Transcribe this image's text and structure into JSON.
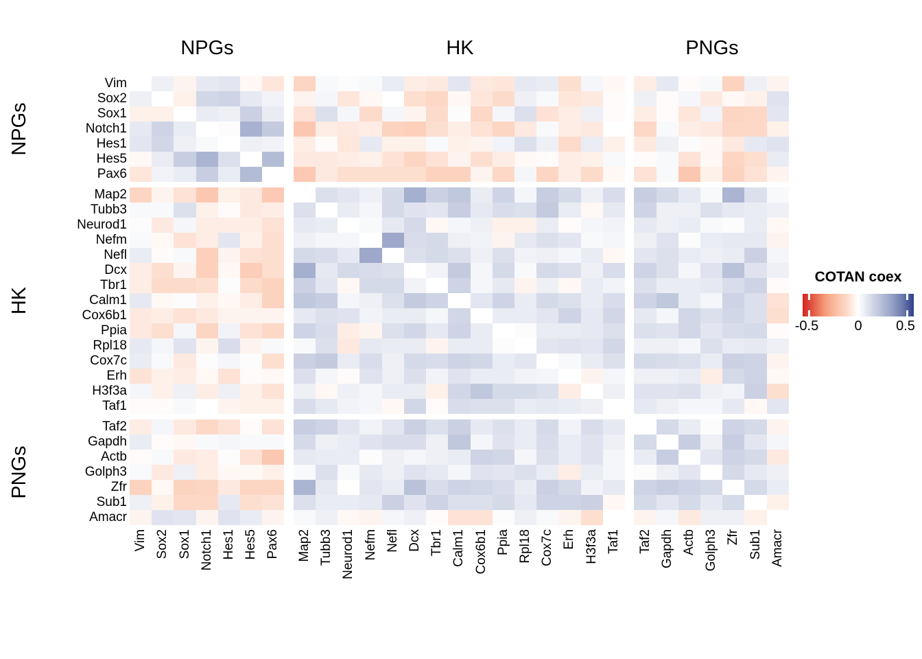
{
  "chart_data": {
    "type": "heatmap",
    "legend": {
      "title": "COTAN coex",
      "ticks": [
        "-0.5",
        "0",
        "0.5"
      ],
      "min": -0.5,
      "max": 0.5
    },
    "groups": [
      {
        "label": "NPGs",
        "genes": [
          "Vim",
          "Sox2",
          "Sox1",
          "Notch1",
          "Hes1",
          "Hes5",
          "Pax6"
        ]
      },
      {
        "label": "HK",
        "genes": [
          "Map2",
          "Tubb3",
          "Neurod1",
          "Nefm",
          "Nefl",
          "Dcx",
          "Tbr1",
          "Calm1",
          "Cox6b1",
          "Ppia",
          "Rpl18",
          "Cox7c",
          "Erh",
          "H3f3a",
          "Taf1"
        ]
      },
      {
        "label": "PNGs",
        "genes": [
          "Taf2",
          "Gapdh",
          "Actb",
          "Golph3",
          "Zfr",
          "Sub1",
          "Amacr"
        ]
      }
    ],
    "color_scale": {
      "max": 0.5,
      "negative_stops": [
        "#FFFFFF",
        "#FDDBCB",
        "#FBBFA4",
        "#F49B78",
        "#E35F4A",
        "#D32222"
      ],
      "positive_stops": [
        "#FFFFFF",
        "#DCE0ED",
        "#B9C2D9",
        "#97A2C7",
        "#6C7BAC",
        "#2F3E8D"
      ]
    },
    "matrix": [
      [
        0,
        0.05,
        -0.03,
        0.07,
        0.08,
        -0.02,
        -0.07,
        -0.12,
        0.02,
        0.01,
        0.02,
        0.06,
        -0.05,
        -0.06,
        0.08,
        -0.06,
        -0.07,
        0.07,
        0.06,
        -0.09,
        0.03,
        -0.02,
        -0.05,
        0.07,
        -0.01,
        0.02,
        -0.13,
        0.05,
        -0.03
      ],
      [
        0.05,
        0,
        -0.04,
        0.13,
        0.14,
        0.07,
        0.04,
        -0.03,
        0.03,
        -0.07,
        -0.02,
        0,
        -0.09,
        -0.11,
        -0.02,
        -0.07,
        -0.1,
        0.05,
        0.02,
        -0.07,
        -0.06,
        -0.01,
        0.05,
        -0.01,
        0.03,
        -0.06,
        -0.02,
        -0.04,
        0.09
      ],
      [
        -0.04,
        -0.04,
        0,
        0.06,
        0.05,
        0.15,
        0.06,
        -0.08,
        0.1,
        0.03,
        -0.1,
        0.03,
        -0.03,
        -0.1,
        0.01,
        -0.11,
        0.03,
        0.1,
        -0.08,
        -0.05,
        0.05,
        -0.01,
        -0.05,
        -0.01,
        -0.07,
        0.04,
        -0.12,
        -0.11,
        0.08
      ],
      [
        0.07,
        0.14,
        0.06,
        0,
        0.01,
        0.25,
        0.17,
        -0.17,
        -0.05,
        -0.06,
        -0.05,
        -0.13,
        -0.14,
        -0.09,
        -0.05,
        -0.08,
        -0.12,
        -0.06,
        0.02,
        -0.05,
        -0.06,
        0,
        -0.11,
        0.02,
        -0.05,
        -0.06,
        -0.11,
        -0.11,
        -0.04
      ],
      [
        0.08,
        0.13,
        0.05,
        0.02,
        0,
        0.05,
        0.04,
        -0.05,
        -0.01,
        -0.07,
        0.07,
        -0.04,
        -0.04,
        0.02,
        -0.04,
        -0.03,
        0.04,
        0.1,
        0.05,
        -0.1,
        0.06,
        -0.04,
        -0.06,
        0.05,
        0.01,
        -0.02,
        -0.06,
        0.07,
        0.09
      ],
      [
        -0.02,
        0.06,
        0.16,
        0.24,
        0.1,
        0,
        0.22,
        -0.06,
        -0.06,
        -0.05,
        -0.04,
        -0.08,
        -0.12,
        -0.08,
        -0.03,
        -0.09,
        -0.05,
        -0.02,
        -0.01,
        -0.05,
        -0.04,
        0.02,
        -0.01,
        0.02,
        -0.08,
        -0.02,
        -0.12,
        -0.09,
        0.06
      ],
      [
        -0.07,
        0.04,
        0.06,
        0.16,
        0.06,
        0.22,
        0,
        -0.16,
        -0.06,
        -0.09,
        -0.09,
        -0.09,
        -0.09,
        -0.13,
        -0.13,
        -0.03,
        -0.11,
        0.03,
        -0.12,
        -0.05,
        -0.1,
        -0.02,
        -0.08,
        0.02,
        -0.17,
        -0.04,
        -0.13,
        -0.08,
        -0.03
      ],
      [
        -0.12,
        -0.03,
        -0.08,
        -0.17,
        -0.04,
        -0.06,
        -0.16,
        0,
        0.1,
        0.08,
        0.05,
        0.12,
        0.26,
        0.15,
        0.18,
        0.06,
        0.14,
        0.03,
        0.16,
        0.12,
        0.05,
        0.11,
        0.16,
        0.12,
        0.07,
        0.02,
        0.24,
        0.1,
        0.02
      ],
      [
        0.02,
        0.02,
        0.1,
        -0.04,
        -0.01,
        -0.06,
        -0.05,
        0.1,
        0,
        0.06,
        0.03,
        0.12,
        0.09,
        0.08,
        0.16,
        0.07,
        0.11,
        0.1,
        0.17,
        0.06,
        -0.02,
        0.07,
        0.14,
        0.05,
        0.05,
        0.1,
        0.07,
        0.06,
        0.05
      ],
      [
        0.01,
        -0.06,
        0.03,
        -0.05,
        -0.05,
        -0.05,
        -0.08,
        0.07,
        0.06,
        0,
        0.02,
        0.07,
        0.12,
        -0.02,
        0.03,
        0.05,
        -0.04,
        -0.04,
        0.06,
        -0.01,
        0.03,
        0.04,
        0.07,
        0.05,
        0.06,
        0.02,
        0.01,
        0.06,
        -0.02
      ],
      [
        0.02,
        -0.02,
        -0.08,
        -0.05,
        0.08,
        -0.04,
        -0.09,
        0.05,
        0.03,
        0.03,
        0,
        0.28,
        0.11,
        0.12,
        0.05,
        0.04,
        -0.03,
        0.07,
        0.1,
        0.08,
        0.02,
        0.03,
        0.05,
        0.09,
        0.01,
        0.06,
        0.07,
        0.07,
        -0.03
      ],
      [
        0.06,
        -0.01,
        0.02,
        -0.14,
        -0.03,
        -0.08,
        -0.09,
        0.12,
        0.11,
        0.07,
        0.28,
        0,
        0.1,
        0.12,
        0.1,
        0.05,
        0.1,
        0.04,
        0.05,
        0.03,
        0.06,
        -0.02,
        0.08,
        0.1,
        0.06,
        0.05,
        0.06,
        0.15,
        0.03
      ],
      [
        -0.05,
        -0.09,
        -0.03,
        -0.14,
        -0.02,
        -0.15,
        -0.09,
        0.26,
        0.07,
        0.12,
        0.11,
        0.1,
        0,
        0.04,
        0.17,
        0.03,
        0.12,
        0.02,
        0.12,
        0.1,
        0.05,
        0.11,
        0.14,
        0.1,
        0.03,
        0.09,
        0.2,
        0.09,
        0.05
      ],
      [
        -0.05,
        -0.1,
        -0.1,
        -0.09,
        0.01,
        -0.1,
        -0.13,
        0.15,
        0.08,
        -0.02,
        0.12,
        0.12,
        0.04,
        0,
        0.14,
        0.03,
        0.07,
        -0.03,
        0.05,
        -0.02,
        0.06,
        0.04,
        0.1,
        0.06,
        0.06,
        0.07,
        0.11,
        0.14,
        -0.01
      ],
      [
        0.07,
        -0.02,
        0.01,
        -0.04,
        -0.02,
        -0.05,
        -0.13,
        0.18,
        0.16,
        0.03,
        0.05,
        0.1,
        0.17,
        0.14,
        0,
        0.08,
        0.14,
        0.06,
        0.12,
        0.1,
        0.06,
        0.11,
        0.14,
        0.18,
        0.06,
        0.03,
        0.14,
        0.1,
        -0.08
      ],
      [
        -0.06,
        -0.05,
        -0.08,
        -0.06,
        -0.03,
        -0.03,
        -0.03,
        0.07,
        0.1,
        0.09,
        0.04,
        0.06,
        0.06,
        0.03,
        0.13,
        0,
        0.06,
        0.06,
        0.08,
        0.14,
        0.07,
        0.13,
        0.07,
        0.03,
        0.13,
        0.1,
        0.13,
        0.1,
        -0.09
      ],
      [
        -0.06,
        -0.09,
        0.03,
        -0.12,
        0.04,
        -0.08,
        -0.11,
        0.14,
        0.11,
        -0.05,
        -0.03,
        0.1,
        0.13,
        0.07,
        0.14,
        0.06,
        0,
        0.01,
        0.06,
        0.06,
        0.07,
        0.1,
        0.1,
        0.09,
        0.13,
        0.08,
        0.11,
        0.12,
        -0.01
      ],
      [
        0.07,
        0.03,
        0.09,
        -0.03,
        0.11,
        -0.03,
        0.02,
        0.02,
        0.1,
        -0.06,
        0.07,
        0.06,
        0.06,
        -0.03,
        0.06,
        0.06,
        0.01,
        0,
        0.08,
        0.09,
        0.08,
        0.13,
        0.05,
        0.05,
        0.03,
        0.1,
        0.06,
        0.07,
        0.05
      ],
      [
        0.06,
        0.02,
        -0.06,
        0.01,
        0.03,
        0.01,
        -0.09,
        0.15,
        0.17,
        0.06,
        0.11,
        0.05,
        0.12,
        0.11,
        0.14,
        0.13,
        0.06,
        0.08,
        0,
        0.02,
        0.06,
        0.1,
        0.12,
        0.11,
        0.1,
        0.06,
        0.15,
        0.14,
        -0.03
      ],
      [
        -0.08,
        -0.04,
        -0.05,
        -0.02,
        -0.08,
        -0.01,
        -0.02,
        0.1,
        0.03,
        -0.01,
        0.09,
        0.05,
        0.1,
        0.04,
        0.09,
        0.06,
        0.06,
        0.04,
        0.03,
        0,
        -0.03,
        0.03,
        0.05,
        0.05,
        0.06,
        -0.05,
        0.12,
        0.14,
        -0.02
      ],
      [
        0.03,
        -0.04,
        0.05,
        -0.05,
        0.05,
        -0.04,
        -0.08,
        0.05,
        -0.02,
        0.05,
        0.03,
        0.06,
        0.06,
        -0.04,
        0.13,
        0.18,
        0.12,
        0.12,
        0.1,
        -0.05,
        0,
        0.05,
        0.09,
        0.09,
        0.1,
        0.05,
        0.04,
        0.15,
        -0.09
      ],
      [
        -0.01,
        -0.01,
        0.02,
        0,
        -0.03,
        -0.04,
        -0.04,
        0.11,
        0.07,
        0.04,
        0.03,
        -0.02,
        0.13,
        -0.01,
        0.11,
        0.1,
        0.1,
        0.06,
        0.07,
        0.06,
        0.05,
        0,
        0.07,
        0.05,
        0.03,
        0.03,
        0.07,
        -0.02,
        0.08
      ],
      [
        -0.05,
        0.03,
        -0.06,
        -0.11,
        -0.08,
        -0.01,
        -0.08,
        0.16,
        0.14,
        0.08,
        0.04,
        0.08,
        0.15,
        0.1,
        0.15,
        0.07,
        0.1,
        0.06,
        0.12,
        0.04,
        0.11,
        0.07,
        0,
        0.12,
        0.06,
        0.01,
        0.14,
        0.12,
        -0.03
      ],
      [
        0.06,
        -0.01,
        -0.02,
        0.02,
        0.03,
        0.02,
        0.02,
        0.12,
        0.05,
        0.06,
        0.09,
        0.11,
        0.11,
        0.05,
        0.18,
        0.03,
        0.09,
        0.06,
        0.11,
        0.06,
        0.09,
        0.05,
        0.12,
        0,
        0.16,
        0.05,
        0.16,
        0.08,
        0.03
      ],
      [
        -0.01,
        0.02,
        -0.06,
        -0.05,
        0.01,
        -0.08,
        -0.17,
        0.07,
        0.06,
        0.06,
        0.01,
        0.05,
        0.03,
        0.05,
        0.06,
        0.14,
        0.13,
        0.03,
        0.1,
        0.06,
        0.09,
        0.03,
        0.06,
        0.16,
        0,
        0.08,
        0.14,
        0.12,
        -0.06
      ],
      [
        0.02,
        -0.06,
        0.05,
        -0.05,
        -0.02,
        -0.02,
        -0.04,
        0.02,
        0.1,
        0.02,
        0.07,
        0.05,
        0.09,
        0.07,
        0.03,
        0.09,
        0.08,
        0.1,
        0.06,
        -0.05,
        0.06,
        0.03,
        0.01,
        0.05,
        0.08,
        0,
        0.12,
        0.07,
        0.05
      ],
      [
        -0.13,
        -0.02,
        -0.13,
        -0.12,
        -0.06,
        -0.12,
        -0.12,
        0.24,
        0.07,
        0,
        0.08,
        0.06,
        0.2,
        0.11,
        0.14,
        0.13,
        0.11,
        0.06,
        0.15,
        0.12,
        0.04,
        0.07,
        0.14,
        0.16,
        0.14,
        0.12,
        0,
        0.12,
        0.06
      ],
      [
        0.05,
        -0.04,
        -0.11,
        -0.11,
        0.07,
        -0.09,
        -0.08,
        0.1,
        0.06,
        0.06,
        0.07,
        0.15,
        0.09,
        0.14,
        0.1,
        0.1,
        0.12,
        0.07,
        0.14,
        0.14,
        0.15,
        -0.02,
        0.12,
        0.08,
        0.12,
        0.07,
        0.12,
        0,
        -0.04
      ],
      [
        -0.03,
        0.09,
        0.08,
        -0.03,
        0.09,
        0.06,
        -0.03,
        0.02,
        0.05,
        -0.02,
        -0.03,
        0.03,
        0.05,
        -0.01,
        -0.08,
        -0.08,
        0.01,
        0.05,
        0.02,
        -0.03,
        -0.09,
        0,
        -0.03,
        0.03,
        -0.06,
        0.05,
        0.05,
        -0.04,
        0
      ]
    ]
  }
}
